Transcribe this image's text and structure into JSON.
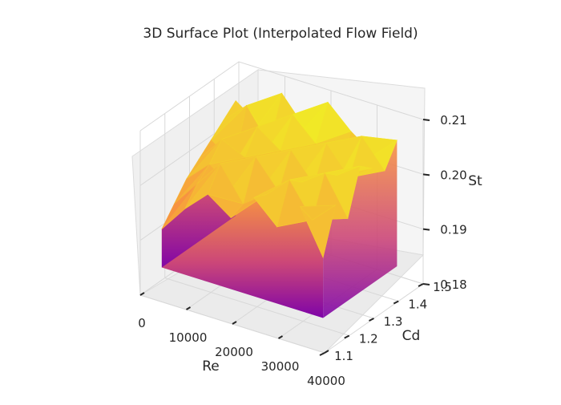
{
  "chart_data": {
    "type": "surface3d",
    "title": "3D Surface Plot (Interpolated Flow Field)",
    "colormap": "plasma",
    "axes": {
      "x": {
        "label": "Re",
        "range": [
          0,
          40000
        ],
        "ticks": [
          "0",
          "10000",
          "20000",
          "30000",
          "40000"
        ]
      },
      "y": {
        "label": "Cd",
        "range": [
          1.1,
          1.5
        ],
        "ticks": [
          "1.1",
          "1.2",
          "1.3",
          "1.4",
          "1.5"
        ]
      },
      "z": {
        "label": "St",
        "range": [
          0.18,
          0.21
        ],
        "ticks": [
          "0.18",
          "0.19",
          "0.20",
          "0.21"
        ]
      }
    },
    "surface": {
      "re": [
        2000,
        7000,
        12000,
        17000,
        22000,
        27000,
        32000,
        37000
      ],
      "cd": [
        1.15,
        1.2,
        1.25,
        1.3,
        1.35,
        1.4,
        1.45
      ],
      "st": [
        [
          0.191,
          0.196,
          0.2,
          0.197,
          0.202,
          0.198,
          0.203,
          0.195
        ],
        [
          0.194,
          0.199,
          0.204,
          0.198,
          0.201,
          0.205,
          0.199,
          0.203
        ],
        [
          0.197,
          0.201,
          0.198,
          0.205,
          0.2,
          0.203,
          0.206,
          0.199
        ],
        [
          0.199,
          0.204,
          0.202,
          0.199,
          0.206,
          0.201,
          0.204,
          0.207
        ],
        [
          0.201,
          0.198,
          0.206,
          0.203,
          0.2,
          0.207,
          0.202,
          0.205
        ],
        [
          0.203,
          0.207,
          0.201,
          0.208,
          0.204,
          0.199,
          0.208,
          0.203
        ],
        [
          0.205,
          0.202,
          0.209,
          0.204,
          0.21,
          0.206,
          0.203,
          0.207
        ]
      ],
      "floor_st": 0.184
    },
    "grid": true
  }
}
